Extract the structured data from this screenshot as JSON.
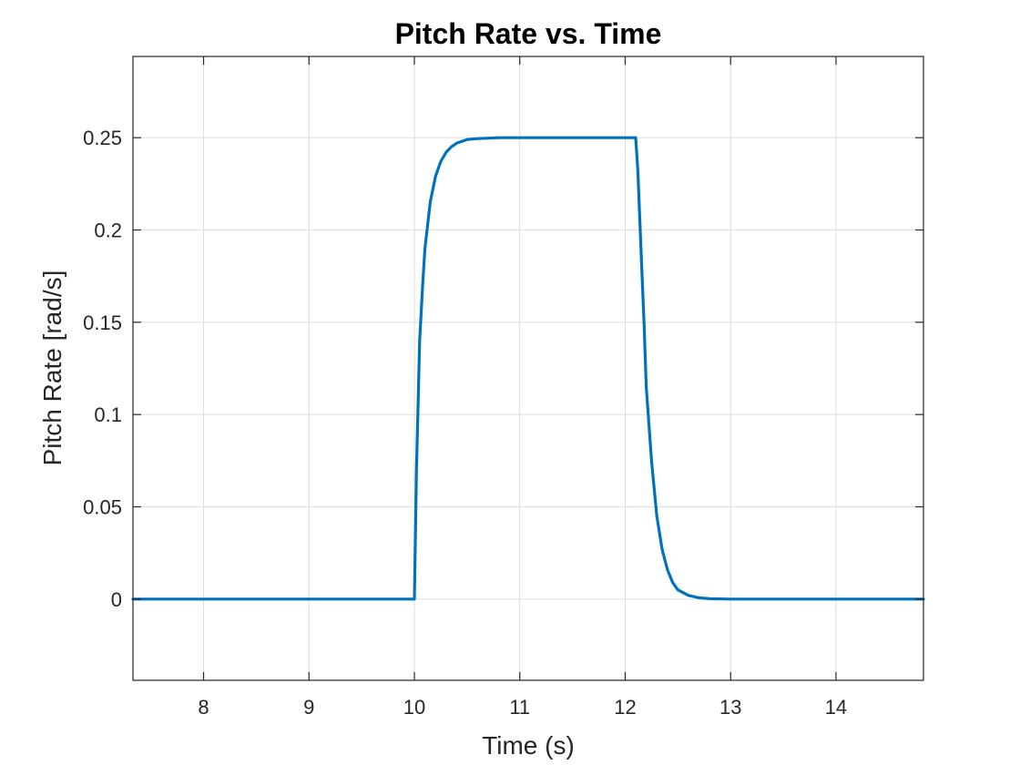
{
  "chart_data": {
    "type": "line",
    "title": "Pitch Rate vs. Time",
    "xlabel": "Time (s)",
    "ylabel": "Pitch Rate [rad/s]",
    "xlim": [
      7.33,
      14.83
    ],
    "ylim": [
      -0.044,
      0.294
    ],
    "x_ticks": [
      8,
      9,
      10,
      11,
      12,
      13,
      14
    ],
    "x_tick_labels": [
      "8",
      "9",
      "10",
      "11",
      "12",
      "13",
      "14"
    ],
    "y_ticks": [
      0,
      0.05,
      0.1,
      0.15,
      0.2,
      0.25
    ],
    "y_tick_labels": [
      "0",
      "0.05",
      "0.1",
      "0.15",
      "0.2",
      "0.25"
    ],
    "grid": true,
    "line_color": "#0072BD",
    "series": [
      {
        "x": [
          7.33,
          10.0,
          10.02,
          10.05,
          10.08,
          10.1,
          10.15,
          10.2,
          10.25,
          10.3,
          10.35,
          10.4,
          10.5,
          10.6,
          10.8,
          12.1,
          12.12,
          12.15,
          12.18,
          12.2,
          12.25,
          12.3,
          12.35,
          12.4,
          12.45,
          12.5,
          12.6,
          12.7,
          12.8,
          13.0,
          14.83
        ],
        "y": [
          0,
          0,
          0.07,
          0.14,
          0.172,
          0.19,
          0.215,
          0.229,
          0.237,
          0.242,
          0.245,
          0.247,
          0.249,
          0.2495,
          0.25,
          0.25,
          0.232,
          0.19,
          0.148,
          0.115,
          0.075,
          0.045,
          0.027,
          0.016,
          0.009,
          0.005,
          0.002,
          0.0007,
          0.0002,
          0,
          0
        ]
      }
    ]
  }
}
